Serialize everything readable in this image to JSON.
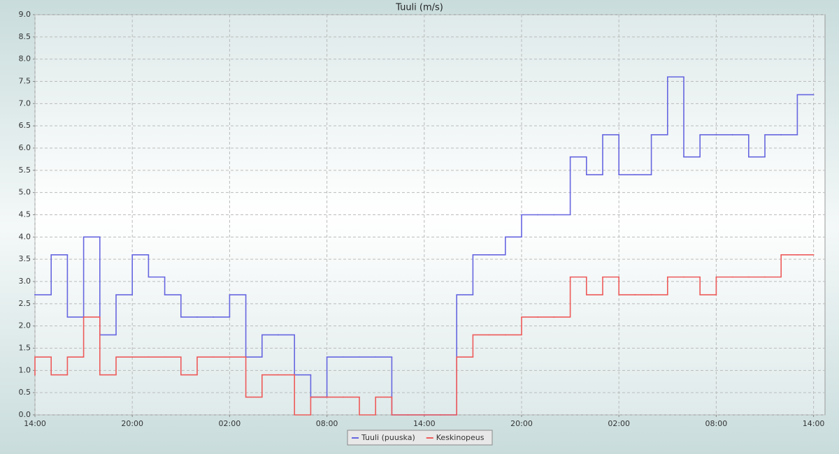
{
  "chart_data": {
    "type": "line",
    "step": true,
    "title": "Tuuli (m/s)",
    "categories": [
      "14:00",
      null,
      null,
      null,
      null,
      null,
      "20:00",
      null,
      null,
      null,
      null,
      null,
      "02:00",
      null,
      null,
      null,
      null,
      null,
      "08:00",
      null,
      null,
      null,
      null,
      null,
      "14:00",
      null,
      null,
      null,
      null,
      null,
      "20:00",
      null,
      null,
      null,
      null,
      null,
      "02:00",
      null,
      null,
      null,
      null,
      null,
      "08:00",
      null,
      null,
      null,
      null,
      null,
      "14:00"
    ],
    "series": [
      {
        "name": "Tuuli (puuska)",
        "color": "#6666e0",
        "values": [
          2.7,
          2.7,
          3.6,
          2.2,
          4.0,
          1.8,
          2.7,
          3.6,
          3.1,
          2.7,
          2.2,
          2.2,
          2.2,
          2.7,
          1.3,
          1.8,
          1.8,
          0.9,
          0.4,
          1.3,
          1.3,
          1.3,
          1.3,
          0.0,
          0.0,
          0.0,
          0.0,
          2.7,
          3.6,
          3.6,
          4.0,
          4.5,
          4.5,
          4.5,
          5.8,
          5.4,
          6.3,
          5.4,
          5.4,
          6.3,
          7.6,
          5.8,
          6.3,
          6.3,
          6.3,
          5.8,
          6.3,
          6.3,
          7.2
        ]
      },
      {
        "name": "Keskinopeus",
        "color": "#ee5a5a",
        "values": [
          0.9,
          1.3,
          0.9,
          1.3,
          2.2,
          0.9,
          1.3,
          1.3,
          1.3,
          1.3,
          0.9,
          1.3,
          1.3,
          1.3,
          0.4,
          0.9,
          0.9,
          0.0,
          0.4,
          0.4,
          0.4,
          0.0,
          0.4,
          0.0,
          0.0,
          0.0,
          0.0,
          1.3,
          1.8,
          1.8,
          1.8,
          2.2,
          2.2,
          2.2,
          3.1,
          2.7,
          3.1,
          2.7,
          2.7,
          2.7,
          3.1,
          3.1,
          2.7,
          3.1,
          3.1,
          3.1,
          3.1,
          3.6,
          3.6
        ]
      }
    ],
    "ylim": [
      0,
      9
    ],
    "yticks": [
      {
        "value": 0,
        "label": "0.0"
      },
      0.5,
      {
        "value": 1,
        "label": "1.0"
      },
      1.5,
      {
        "value": 2,
        "label": "2.0"
      },
      2.5,
      {
        "value": 3,
        "label": "3.0"
      },
      3.5,
      {
        "value": 4,
        "label": "4.0"
      },
      4.5,
      {
        "value": 5,
        "label": "5.0"
      },
      5.5,
      {
        "value": 6,
        "label": "6.0"
      },
      6.5,
      {
        "value": 7,
        "label": "7.0"
      },
      7.5,
      {
        "value": 8,
        "label": "8.0"
      },
      8.5,
      {
        "value": 9,
        "label": "9.0"
      }
    ],
    "grid": true,
    "legend": "bottom"
  }
}
